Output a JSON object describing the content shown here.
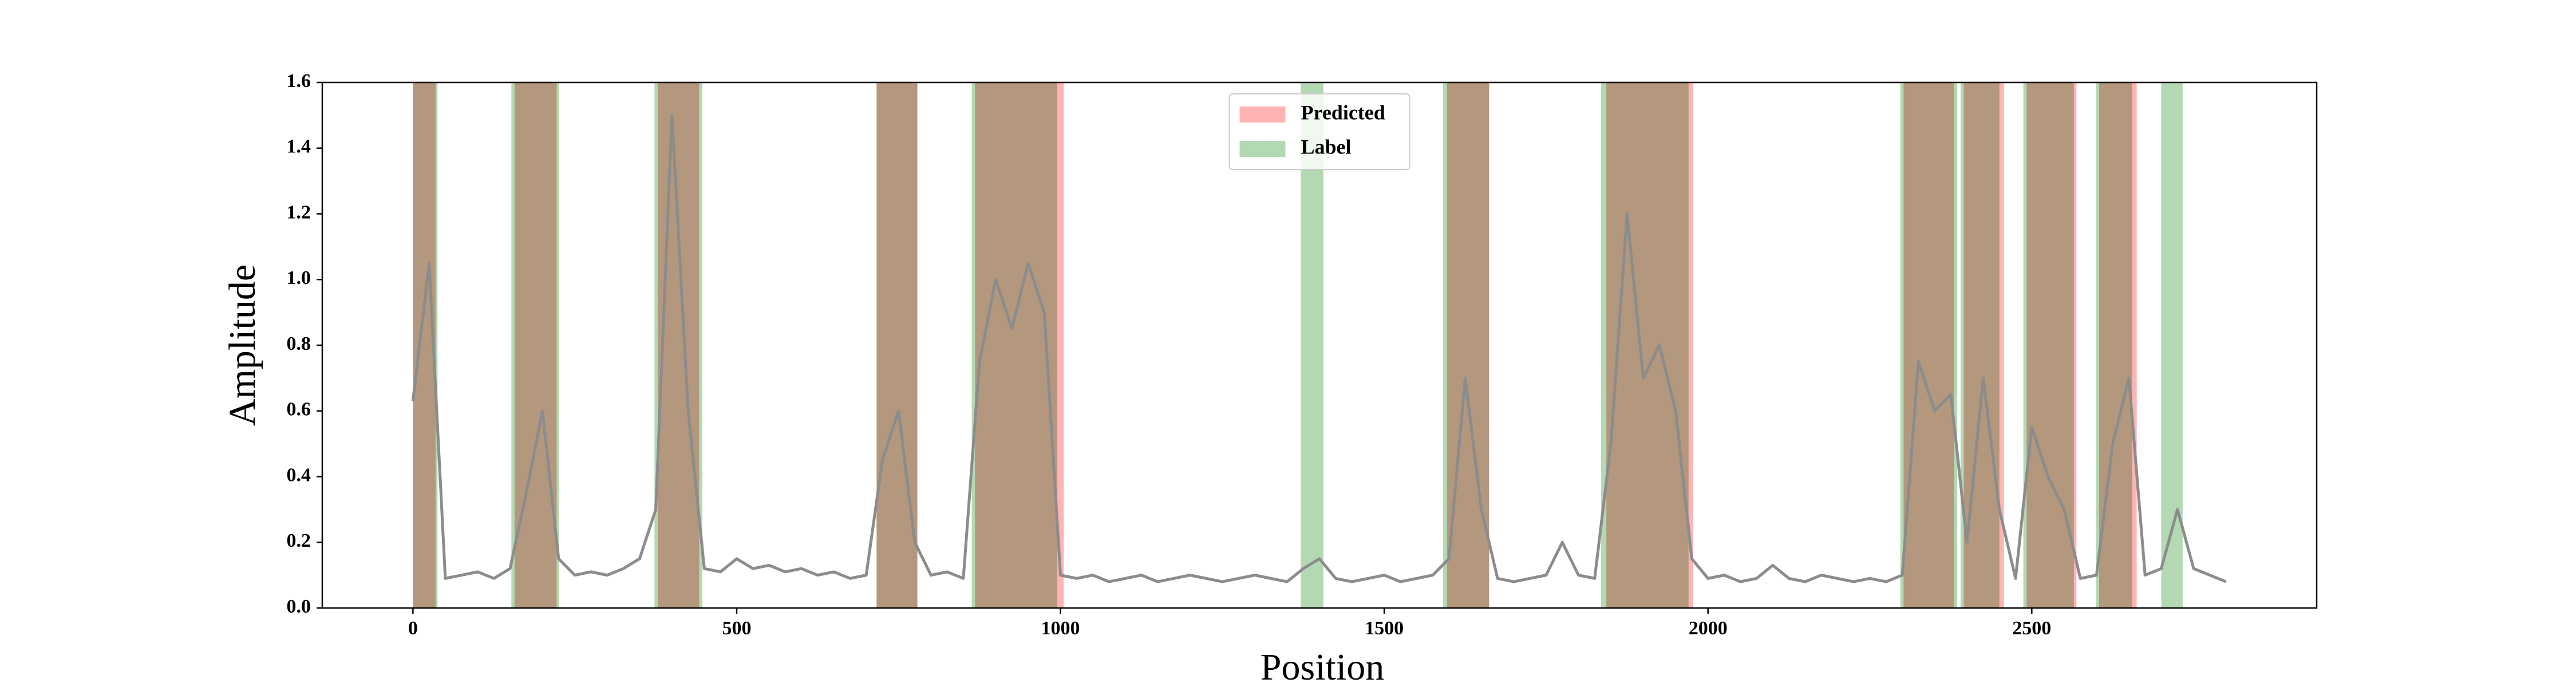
{
  "chart_data": {
    "type": "line",
    "x_label": "Position",
    "y_label": "Amplitude",
    "xlim": [
      -140,
      2940
    ],
    "ylim": [
      0,
      1.6
    ],
    "xticks": [
      0,
      500,
      1000,
      1500,
      2000,
      2500
    ],
    "yticks": [
      {
        "value": 0,
        "label": "0.0"
      },
      0.2,
      0.4,
      0.6,
      0.8,
      {
        "value": 1,
        "label": "1.0"
      },
      1.2,
      1.4,
      1.6
    ],
    "legend": "upper center",
    "span_series": [
      {
        "name": "Predicted",
        "color": "#ffb3b3",
        "spans": [
          [
            0,
            35
          ],
          [
            157,
            222
          ],
          [
            378,
            442
          ],
          [
            716,
            779
          ],
          [
            868,
            1005
          ],
          [
            1597,
            1662
          ],
          [
            1843,
            1977
          ],
          [
            2302,
            2380
          ],
          [
            2395,
            2457
          ],
          [
            2492,
            2569
          ],
          [
            2604,
            2662
          ]
        ]
      },
      {
        "name": "Label",
        "color": "#b3d9b3",
        "spans": [
          [
            0,
            38
          ],
          [
            152,
            226
          ],
          [
            373,
            447
          ],
          [
            716,
            779
          ],
          [
            863,
            995
          ],
          [
            1371,
            1406
          ],
          [
            1591,
            1662
          ],
          [
            1835,
            1970
          ],
          [
            2297,
            2385
          ],
          [
            2390,
            2450
          ],
          [
            2487,
            2565
          ],
          [
            2599,
            2655
          ],
          [
            2700,
            2733
          ]
        ]
      }
    ],
    "line_color": "#8c8c8c",
    "x": [
      0,
      25,
      50,
      75,
      100,
      125,
      150,
      175,
      200,
      225,
      250,
      275,
      300,
      325,
      350,
      375,
      400,
      425,
      450,
      475,
      500,
      525,
      550,
      575,
      600,
      625,
      650,
      675,
      700,
      725,
      750,
      775,
      800,
      825,
      850,
      875,
      900,
      925,
      950,
      975,
      1000,
      1025,
      1050,
      1075,
      1100,
      1125,
      1150,
      1175,
      1200,
      1225,
      1250,
      1275,
      1300,
      1325,
      1350,
      1375,
      1400,
      1425,
      1450,
      1475,
      1500,
      1525,
      1550,
      1575,
      1600,
      1625,
      1650,
      1675,
      1700,
      1725,
      1750,
      1775,
      1800,
      1825,
      1850,
      1875,
      1900,
      1925,
      1950,
      1975,
      2000,
      2025,
      2050,
      2075,
      2100,
      2125,
      2150,
      2175,
      2200,
      2225,
      2250,
      2275,
      2300,
      2325,
      2350,
      2375,
      2400,
      2425,
      2450,
      2475,
      2500,
      2525,
      2550,
      2575,
      2600,
      2625,
      2650,
      2675,
      2700,
      2725,
      2750,
      2775,
      2800
    ],
    "values": [
      0.63,
      1.05,
      0.09,
      0.1,
      0.11,
      0.09,
      0.12,
      0.35,
      0.6,
      0.15,
      0.1,
      0.11,
      0.1,
      0.12,
      0.15,
      0.3,
      1.5,
      0.6,
      0.12,
      0.11,
      0.15,
      0.12,
      0.13,
      0.11,
      0.12,
      0.1,
      0.11,
      0.09,
      0.1,
      0.45,
      0.6,
      0.2,
      0.1,
      0.11,
      0.09,
      0.75,
      1.0,
      0.85,
      1.05,
      0.9,
      0.1,
      0.09,
      0.1,
      0.08,
      0.09,
      0.1,
      0.08,
      0.09,
      0.1,
      0.09,
      0.08,
      0.09,
      0.1,
      0.09,
      0.08,
      0.12,
      0.15,
      0.09,
      0.08,
      0.09,
      0.1,
      0.08,
      0.09,
      0.1,
      0.15,
      0.7,
      0.3,
      0.09,
      0.08,
      0.09,
      0.1,
      0.2,
      0.1,
      0.09,
      0.5,
      1.2,
      0.7,
      0.8,
      0.6,
      0.15,
      0.09,
      0.1,
      0.08,
      0.09,
      0.13,
      0.09,
      0.08,
      0.1,
      0.09,
      0.08,
      0.09,
      0.08,
      0.1,
      0.75,
      0.6,
      0.65,
      0.2,
      0.7,
      0.3,
      0.09,
      0.55,
      0.4,
      0.3,
      0.09,
      0.1,
      0.5,
      0.7,
      0.1,
      0.12,
      0.3,
      0.12,
      0.1,
      0.08
    ]
  }
}
